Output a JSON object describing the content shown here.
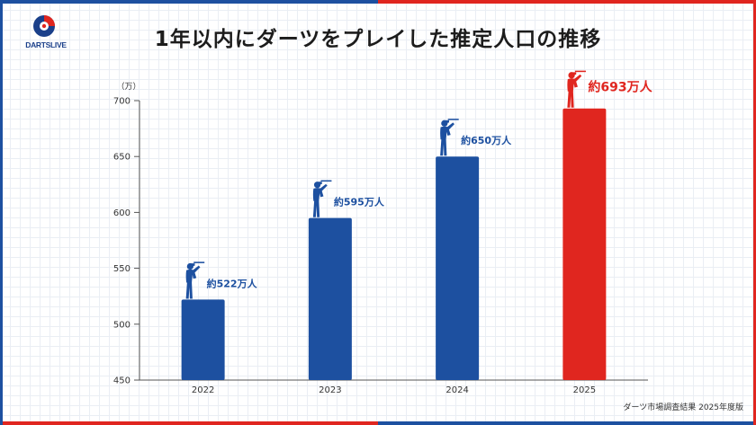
{
  "header": {
    "brand": "DARTSLIVE",
    "title": "1年以内にダーツをプレイした推定人口の推移"
  },
  "chart_data": {
    "type": "bar",
    "title": "1年以内にダーツをプレイした推定人口の推移",
    "unit_label": "（万）",
    "categories": [
      "2022",
      "2023",
      "2024",
      "2025"
    ],
    "values": [
      522,
      595,
      650,
      693
    ],
    "data_labels": [
      "約522万人",
      "約595万人",
      "約650万人",
      "約693万人"
    ],
    "ylim": [
      450,
      700
    ],
    "yticks": [
      450,
      500,
      550,
      600,
      650,
      700
    ],
    "grid": false,
    "legend": "none",
    "colors": [
      "#1d50a0",
      "#1d50a0",
      "#1d50a0",
      "#e0261f"
    ]
  },
  "footer": {
    "source": "ダーツ市場調査結果 2025年度版"
  },
  "theme": {
    "blue": "#1d50a0",
    "red": "#e0261f",
    "axis": "#555555",
    "icons": [
      "dart-player-icon"
    ]
  }
}
